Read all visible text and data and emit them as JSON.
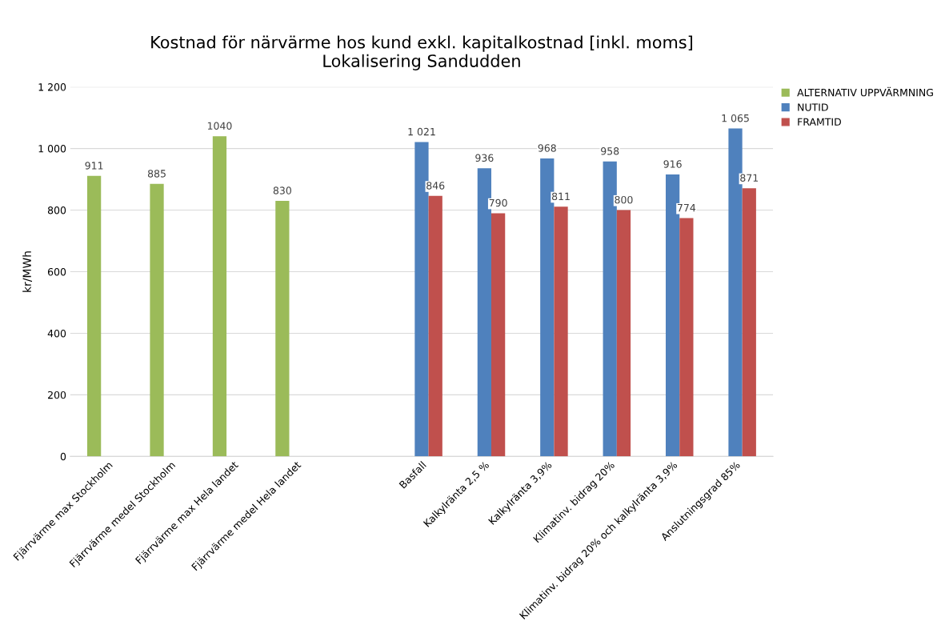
{
  "chart_data": {
    "type": "bar",
    "title": "Kostnad för närvärme hos kund exkl. kapitalkostnad [inkl. moms]\nLokalisering Sandudden",
    "ylabel": "kr/MWh",
    "categories": [
      "Fjärrvärme max Stockholm",
      "Fjärrvärme medel Stockholm",
      "Fjärrvärme max Hela landet",
      "Fjärrvärme medel Hela landet",
      null,
      "Basfall",
      "Kalkylränta 2,5 %",
      "Kalkylränta 3,9%",
      "Klimatinv. bidrag 20%",
      "Klimatinv. bidrag 20% och kalkylränta 3,9%",
      "Anslutningsgrad 85%"
    ],
    "series": [
      {
        "name": "ALTERNATIV UPPVÄRMNING",
        "color": "#9bbb59",
        "values": [
          911,
          885,
          1040,
          830,
          null,
          null,
          null,
          null,
          null,
          null,
          null
        ],
        "value_labels": [
          "911",
          "885",
          "1040",
          "830",
          null,
          null,
          null,
          null,
          null,
          null,
          null
        ]
      },
      {
        "name": "NUTID",
        "color": "#4f81bd",
        "values": [
          null,
          null,
          null,
          null,
          null,
          1021,
          936,
          968,
          958,
          916,
          1065
        ],
        "value_labels": [
          null,
          null,
          null,
          null,
          null,
          "1 021",
          "936",
          "968",
          "958",
          "916",
          "1 065"
        ]
      },
      {
        "name": "FRAMTID",
        "color": "#c0504d",
        "values": [
          null,
          null,
          null,
          null,
          null,
          846,
          790,
          811,
          800,
          774,
          871
        ],
        "value_labels": [
          null,
          null,
          null,
          null,
          null,
          "846",
          "790",
          "811",
          "800",
          "774",
          "871"
        ]
      }
    ],
    "ylim": [
      0,
      1200
    ],
    "yticks": [
      0,
      200,
      400,
      600,
      800,
      {
        "value": 1000,
        "label": "1 000"
      },
      {
        "value": 1200,
        "label": "1 200"
      }
    ],
    "grid": "y",
    "legend": "top right"
  }
}
